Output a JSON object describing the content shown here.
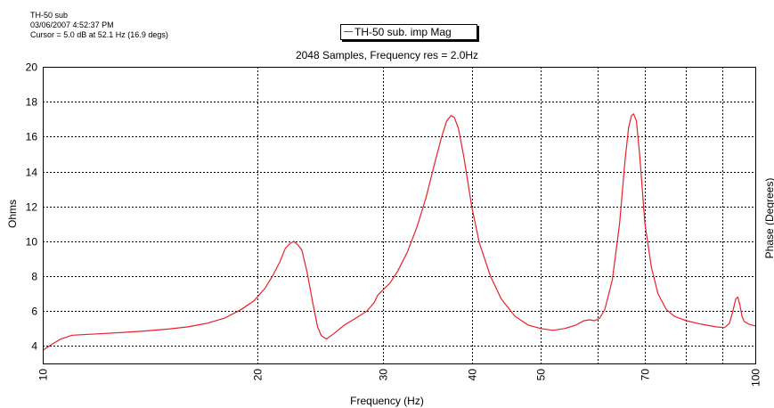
{
  "header": {
    "line1": "TH-50 sub",
    "line2": "03/06/2007 4:52:37 PM",
    "line3": "Cursor = 5.0 dB at 52.1 Hz (16.9 degs)"
  },
  "chart_data": {
    "type": "line",
    "title": "2048 Samples, Frequency res = 2.0Hz",
    "xlabel": "Frequency (Hz)",
    "ylabel": "Ohms",
    "y2label": "Phase (Degrees)",
    "xscale": "log",
    "xlim": [
      10,
      100
    ],
    "ylim": [
      3,
      20
    ],
    "grid": true,
    "legend_position": "top-center",
    "x_ticks": [
      10,
      20,
      30,
      40,
      50,
      70,
      100
    ],
    "x_minor_gridlines": [
      60,
      80,
      90
    ],
    "y_ticks": [
      4,
      6,
      8,
      10,
      12,
      14,
      16,
      18,
      20
    ],
    "series": [
      {
        "name": "TH-50 sub. imp Mag",
        "color": "#e8202a",
        "points": [
          [
            10,
            3.75
          ],
          [
            10.3,
            4.1
          ],
          [
            10.6,
            4.4
          ],
          [
            11.0,
            4.62
          ],
          [
            12,
            4.7
          ],
          [
            13,
            4.78
          ],
          [
            14,
            4.87
          ],
          [
            15,
            4.97
          ],
          [
            16,
            5.1
          ],
          [
            17,
            5.3
          ],
          [
            18,
            5.6
          ],
          [
            19,
            6.1
          ],
          [
            19.8,
            6.6
          ],
          [
            20.5,
            7.3
          ],
          [
            21.0,
            8.0
          ],
          [
            21.5,
            8.8
          ],
          [
            21.9,
            9.6
          ],
          [
            22.2,
            9.85
          ],
          [
            22.5,
            10.0
          ],
          [
            22.8,
            9.8
          ],
          [
            23.1,
            9.5
          ],
          [
            23.5,
            8.2
          ],
          [
            23.9,
            6.6
          ],
          [
            24.3,
            5.1
          ],
          [
            24.6,
            4.6
          ],
          [
            25.0,
            4.4
          ],
          [
            25.6,
            4.7
          ],
          [
            26.5,
            5.2
          ],
          [
            27.5,
            5.6
          ],
          [
            28.5,
            6.0
          ],
          [
            29.2,
            6.5
          ],
          [
            29.5,
            6.9
          ],
          [
            30.0,
            7.2
          ],
          [
            30.7,
            7.6
          ],
          [
            31.5,
            8.3
          ],
          [
            32.5,
            9.4
          ],
          [
            33.5,
            10.8
          ],
          [
            34.5,
            12.5
          ],
          [
            35.5,
            14.5
          ],
          [
            36.3,
            16.0
          ],
          [
            36.9,
            16.9
          ],
          [
            37.4,
            17.2
          ],
          [
            37.8,
            17.1
          ],
          [
            38.3,
            16.5
          ],
          [
            39.0,
            14.8
          ],
          [
            40.0,
            12.0
          ],
          [
            41.0,
            9.9
          ],
          [
            42.5,
            8.0
          ],
          [
            44.0,
            6.7
          ],
          [
            46.0,
            5.7
          ],
          [
            48.0,
            5.2
          ],
          [
            50.0,
            5.0
          ],
          [
            52.0,
            4.9
          ],
          [
            54.0,
            5.0
          ],
          [
            56.0,
            5.2
          ],
          [
            57.5,
            5.45
          ],
          [
            58.5,
            5.5
          ],
          [
            59.5,
            5.45
          ],
          [
            60.5,
            5.6
          ],
          [
            61.5,
            6.1
          ],
          [
            63.0,
            7.8
          ],
          [
            64.5,
            11.0
          ],
          [
            65.6,
            14.5
          ],
          [
            66.4,
            16.5
          ],
          [
            67.0,
            17.2
          ],
          [
            67.5,
            17.3
          ],
          [
            68.1,
            16.9
          ],
          [
            68.8,
            15.0
          ],
          [
            70.0,
            11.0
          ],
          [
            71.5,
            8.5
          ],
          [
            73.0,
            7.0
          ],
          [
            75.0,
            6.1
          ],
          [
            77.0,
            5.7
          ],
          [
            80.0,
            5.45
          ],
          [
            84.0,
            5.25
          ],
          [
            88.0,
            5.1
          ],
          [
            90.5,
            5.05
          ],
          [
            92.0,
            5.3
          ],
          [
            93.0,
            6.0
          ],
          [
            93.9,
            6.7
          ],
          [
            94.5,
            6.8
          ],
          [
            95.1,
            6.4
          ],
          [
            95.8,
            5.7
          ],
          [
            96.5,
            5.4
          ],
          [
            98.0,
            5.25
          ],
          [
            100,
            5.15
          ]
        ]
      }
    ]
  }
}
